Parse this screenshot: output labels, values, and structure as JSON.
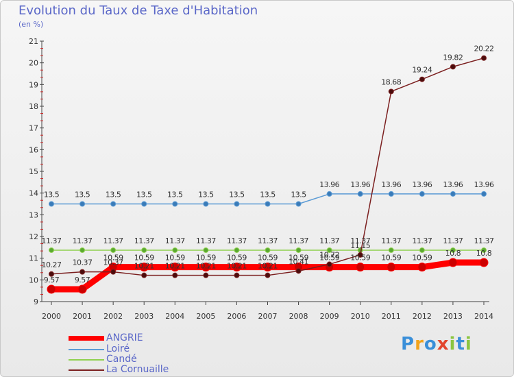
{
  "title": "Evolution du Taux de Taxe d'Habitation",
  "unit_label": "(en %)",
  "brand": "Proxiti",
  "chart_data": {
    "type": "line",
    "title": "Evolution du Taux de Taxe d'Habitation",
    "ylabel": "(en %)",
    "xlabel": "",
    "ylim": [
      9,
      21
    ],
    "yticks": [
      "9",
      "10",
      "11",
      "12",
      "13",
      "14",
      "15",
      "16",
      "17",
      "18",
      "19",
      "20",
      "21"
    ],
    "categories": [
      "2000",
      "2001",
      "2002",
      "2003",
      "2004",
      "2005",
      "2006",
      "2007",
      "2008",
      "2009",
      "2010",
      "2011",
      "2012",
      "2013",
      "2014"
    ],
    "series": [
      {
        "name": "ANGRIE",
        "color": "#ff0000",
        "values": [
          9.57,
          9.57,
          10.59,
          10.59,
          10.59,
          10.59,
          10.59,
          10.59,
          10.59,
          10.59,
          10.59,
          10.59,
          10.59,
          10.8,
          10.8
        ],
        "labels": [
          "9.57",
          "9.57",
          "10.59",
          "10.59",
          "10.59",
          "10.59",
          "10.59",
          "10.59",
          "10.59",
          "10.59",
          "10.59",
          "10.59",
          "10.59",
          "10.8",
          "10.8"
        ]
      },
      {
        "name": "Loiré",
        "color": "#5b9bd5",
        "values": [
          13.5,
          13.5,
          13.5,
          13.5,
          13.5,
          13.5,
          13.5,
          13.5,
          13.5,
          13.96,
          13.96,
          13.96,
          13.96,
          13.96,
          13.96
        ],
        "labels": [
          "13.5",
          "13.5",
          "13.5",
          "13.5",
          "13.5",
          "13.5",
          "13.5",
          "13.5",
          "13.5",
          "13.96",
          "13.96",
          "13.96",
          "13.96",
          "13.96",
          "13.96"
        ]
      },
      {
        "name": "Candé",
        "color": "#8fd14f",
        "values": [
          11.37,
          11.37,
          11.37,
          11.37,
          11.37,
          11.37,
          11.37,
          11.37,
          11.37,
          11.37,
          11.37,
          11.37,
          11.37,
          11.37,
          11.37
        ],
        "labels": [
          "11.37",
          "11.37",
          "11.37",
          "11.37",
          "11.37",
          "11.37",
          "11.37",
          "11.37",
          "11.37",
          "11.37",
          "11.37",
          "11.37",
          "11.37",
          "11.37",
          "11.37"
        ]
      },
      {
        "name": "La Cornuaille",
        "color": "#7b1f1f",
        "values": [
          10.27,
          10.37,
          10.37,
          10.21,
          10.21,
          10.21,
          10.21,
          10.21,
          10.41,
          10.72,
          11.15,
          18.68,
          19.24,
          19.82,
          20.22
        ],
        "labels": [
          "10.27",
          "10.37",
          "10.37",
          "10.21",
          "10.21",
          "10.21",
          "10.21",
          "10.21",
          "10.41",
          "10.72",
          "11.15",
          "18.68",
          "19.24",
          "19.82",
          "20.22"
        ]
      }
    ]
  }
}
